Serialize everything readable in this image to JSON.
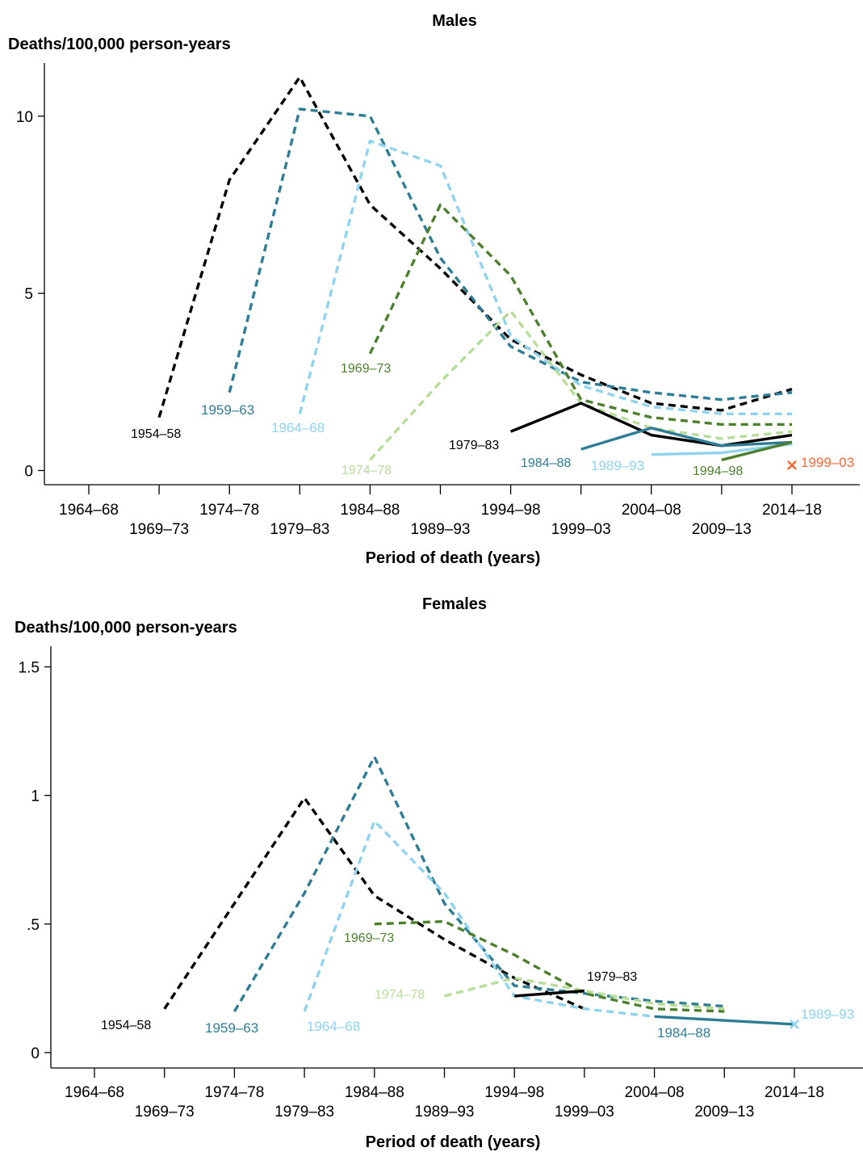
{
  "colors": {
    "c1954_58": "#000000",
    "c1959_63": "#2f7d94",
    "c1964_68": "#8fd3ee",
    "c1969_73": "#4e7f2e",
    "c1974_78": "#b8dc9a",
    "c1979_83": "#000000",
    "c1984_88": "#2f7d94",
    "c1989_93": "#8fd3ee",
    "c1994_98": "#4e7f2e",
    "c1999_03": "#f26b3a"
  },
  "chart_data": [
    {
      "type": "line",
      "title": "Males",
      "ylabel": "Deaths/100,000 person-years",
      "xlabel": "Period of death (years)",
      "categories": [
        "1964–68",
        "1969–73",
        "1974–78",
        "1979–83",
        "1984–88",
        "1989–93",
        "1994–98",
        "1999–03",
        "2004–08",
        "2009–13",
        "2014–18"
      ],
      "yticks": [
        0,
        5,
        10
      ],
      "ytick_labels": [
        "0",
        "5",
        "10"
      ],
      "ylim": [
        -0.4,
        11.5
      ],
      "series": [
        {
          "name": "1954–58",
          "style": "dashed",
          "color_key": "c1954_58",
          "x": [
            1,
            2,
            3,
            4,
            5,
            6,
            7,
            8,
            9,
            10
          ],
          "values": [
            1.5,
            8.2,
            11.1,
            7.5,
            5.7,
            3.7,
            2.7,
            1.9,
            1.7,
            2.3
          ]
        },
        {
          "name": "1959–63",
          "style": "dashed",
          "color_key": "c1959_63",
          "x": [
            2,
            3,
            4,
            5,
            6,
            7,
            8,
            9,
            10
          ],
          "values": [
            2.2,
            10.2,
            10.0,
            6.0,
            3.5,
            2.5,
            2.2,
            2.0,
            2.2
          ]
        },
        {
          "name": "1964–68",
          "style": "dashed",
          "color_key": "c1964_68",
          "x": [
            3,
            4,
            5,
            6,
            7,
            8,
            9,
            10
          ],
          "values": [
            1.6,
            9.3,
            8.6,
            3.8,
            2.4,
            1.8,
            1.6,
            1.6
          ]
        },
        {
          "name": "1969–73",
          "style": "dashed",
          "color_key": "c1969_73",
          "x": [
            4,
            5,
            6,
            7,
            8,
            9,
            10
          ],
          "values": [
            3.3,
            7.5,
            5.5,
            2.0,
            1.5,
            1.3,
            1.3
          ]
        },
        {
          "name": "1974–78",
          "style": "dashed",
          "color_key": "c1974_78",
          "x": [
            4,
            5,
            6,
            7,
            8,
            9,
            10
          ],
          "values": [
            0.3,
            2.5,
            4.5,
            1.9,
            1.2,
            0.9,
            1.1
          ]
        },
        {
          "name": "1979–83",
          "style": "solid",
          "color_key": "c1979_83",
          "x": [
            6,
            7,
            8,
            9,
            10
          ],
          "values": [
            1.1,
            1.9,
            1.0,
            0.7,
            1.0
          ]
        },
        {
          "name": "1984–88",
          "style": "solid",
          "color_key": "c1984_88",
          "x": [
            7,
            8,
            9,
            10
          ],
          "values": [
            0.6,
            1.2,
            0.7,
            0.8
          ]
        },
        {
          "name": "1989–93",
          "style": "solid",
          "color_key": "c1989_93",
          "x": [
            8,
            9,
            10
          ],
          "values": [
            0.45,
            0.5,
            0.75
          ]
        },
        {
          "name": "1994–98",
          "style": "solid",
          "color_key": "c1994_98",
          "x": [
            9,
            10
          ],
          "values": [
            0.3,
            0.8
          ]
        },
        {
          "name": "1999–03",
          "style": "cross",
          "color_key": "c1999_03",
          "x": [
            10
          ],
          "values": [
            0.15
          ]
        }
      ]
    },
    {
      "type": "line",
      "title": "Females",
      "ylabel": "Deaths/100,000 person-years",
      "xlabel": "Period of death (years)",
      "categories": [
        "1964–68",
        "1969–73",
        "1974–78",
        "1979–83",
        "1984–88",
        "1989–93",
        "1994–98",
        "1999–03",
        "2004–08",
        "2009–13",
        "2014–18"
      ],
      "yticks": [
        0,
        0.5,
        1,
        1.5
      ],
      "ytick_labels": [
        "0",
        ".5",
        "1",
        "1.5"
      ],
      "ylim": [
        -0.06,
        1.58
      ],
      "series": [
        {
          "name": "1954–58",
          "style": "dashed",
          "color_key": "c1954_58",
          "x": [
            1,
            2,
            3,
            4,
            5,
            6,
            7
          ],
          "values": [
            0.17,
            0.58,
            0.99,
            0.61,
            0.44,
            0.29,
            0.17
          ]
        },
        {
          "name": "1959–63",
          "style": "dashed",
          "color_key": "c1959_63",
          "x": [
            2,
            3,
            4,
            5,
            6,
            7,
            8,
            9
          ],
          "values": [
            0.16,
            0.62,
            1.15,
            0.58,
            0.26,
            0.23,
            0.2,
            0.18
          ]
        },
        {
          "name": "1964–68",
          "style": "dashed",
          "color_key": "c1964_68",
          "x": [
            3,
            4,
            5,
            6,
            7,
            8
          ],
          "values": [
            0.16,
            0.9,
            0.62,
            0.22,
            0.17,
            0.14
          ]
        },
        {
          "name": "1969–73",
          "style": "dashed",
          "color_key": "c1969_73",
          "x": [
            4,
            5,
            6,
            7,
            8,
            9
          ],
          "values": [
            0.5,
            0.51,
            0.38,
            0.23,
            0.17,
            0.16
          ]
        },
        {
          "name": "1974–78",
          "style": "dashed",
          "color_key": "c1974_78",
          "x": [
            5,
            6,
            7,
            8,
            9
          ],
          "values": [
            0.22,
            0.29,
            0.24,
            0.19,
            0.17
          ]
        },
        {
          "name": "1979–83",
          "style": "solid",
          "color_key": "c1979_83",
          "x": [
            6,
            7
          ],
          "values": [
            0.22,
            0.24
          ]
        },
        {
          "name": "1984–88",
          "style": "solid",
          "color_key": "c1984_88",
          "x": [
            8,
            10
          ],
          "values": [
            0.14,
            0.11
          ]
        },
        {
          "name": "1989–93",
          "style": "cross",
          "color_key": "c1989_93",
          "x": [
            10
          ],
          "values": [
            0.11
          ]
        }
      ]
    }
  ]
}
